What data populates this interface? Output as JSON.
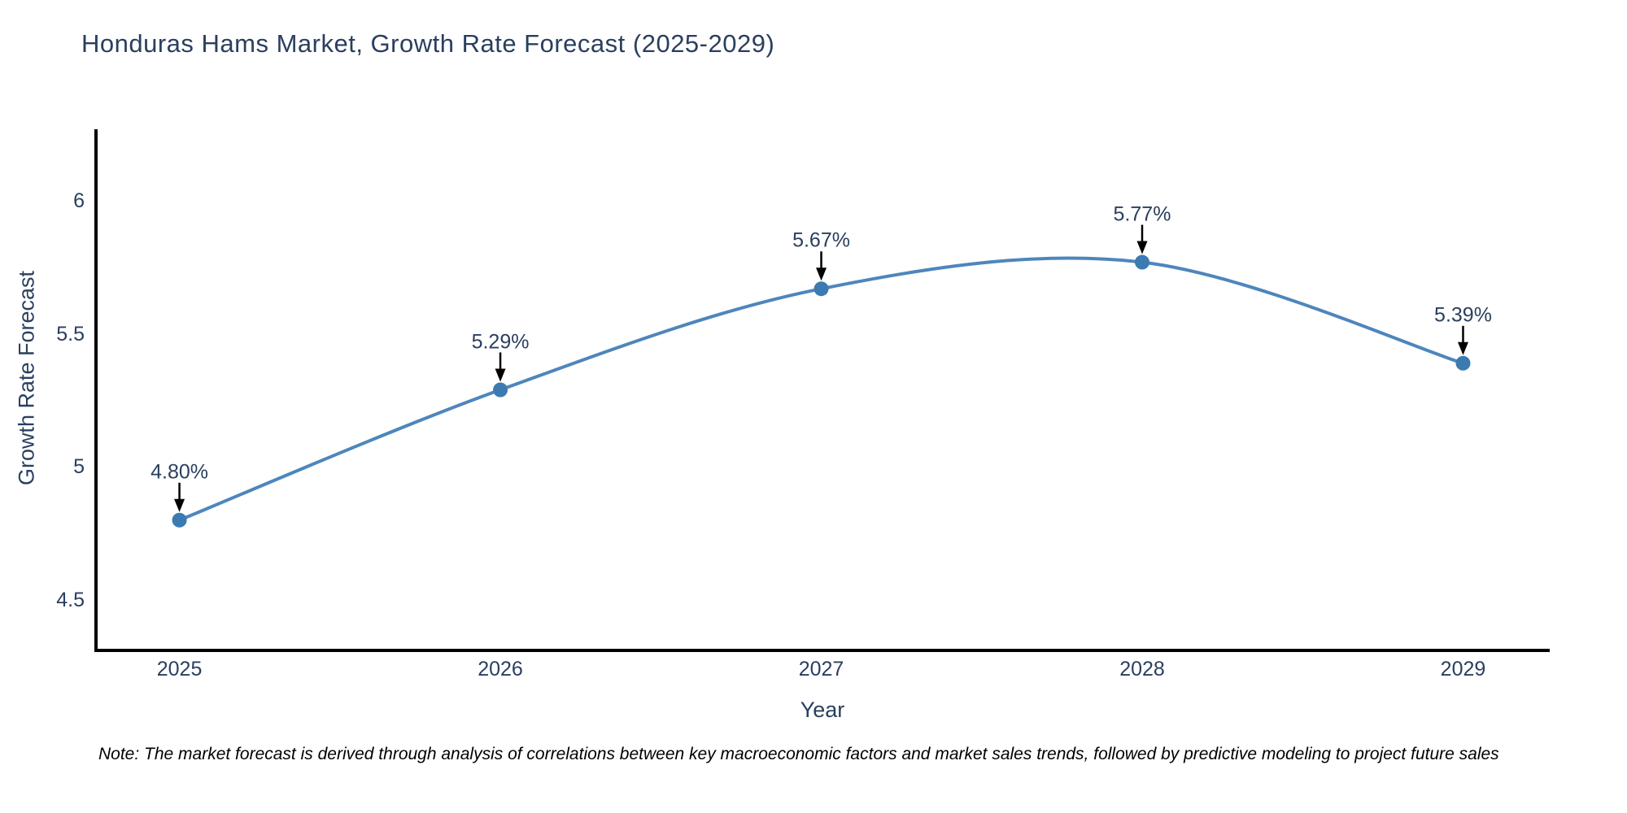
{
  "title": "Honduras Hams Market, Growth Rate Forecast (2025-2029)",
  "note": "Note: The market forecast is derived through analysis of correlations between key macroeconomic factors and market sales trends, followed by predictive modeling to project future sales",
  "chart_data": {
    "type": "line",
    "title": "Honduras Hams Market, Growth Rate Forecast (2025-2029)",
    "xlabel": "Year",
    "ylabel": "Growth Rate Forecast",
    "x": [
      2025,
      2026,
      2027,
      2028,
      2029
    ],
    "y": [
      4.8,
      5.29,
      5.67,
      5.77,
      5.39
    ],
    "point_labels": [
      "4.80%",
      "5.29%",
      "5.67%",
      "5.77%",
      "5.39%"
    ],
    "xtick_labels": [
      "2025",
      "2026",
      "2027",
      "2028",
      "2029"
    ],
    "yticks": [
      4.5,
      5,
      5.5,
      6
    ],
    "ytick_labels": [
      "4.5",
      "5",
      "5.5",
      "6"
    ],
    "xlim": [
      2024.74,
      2029.27
    ],
    "ylim": [
      4.31,
      6.27
    ],
    "line_shape": "spline",
    "grid": false,
    "legend_position": "none",
    "line_color": "#4d86bc",
    "marker_color": "#3c7ab2",
    "axis_line_color": "#000000",
    "annotation_arrow_color": "#000000"
  }
}
